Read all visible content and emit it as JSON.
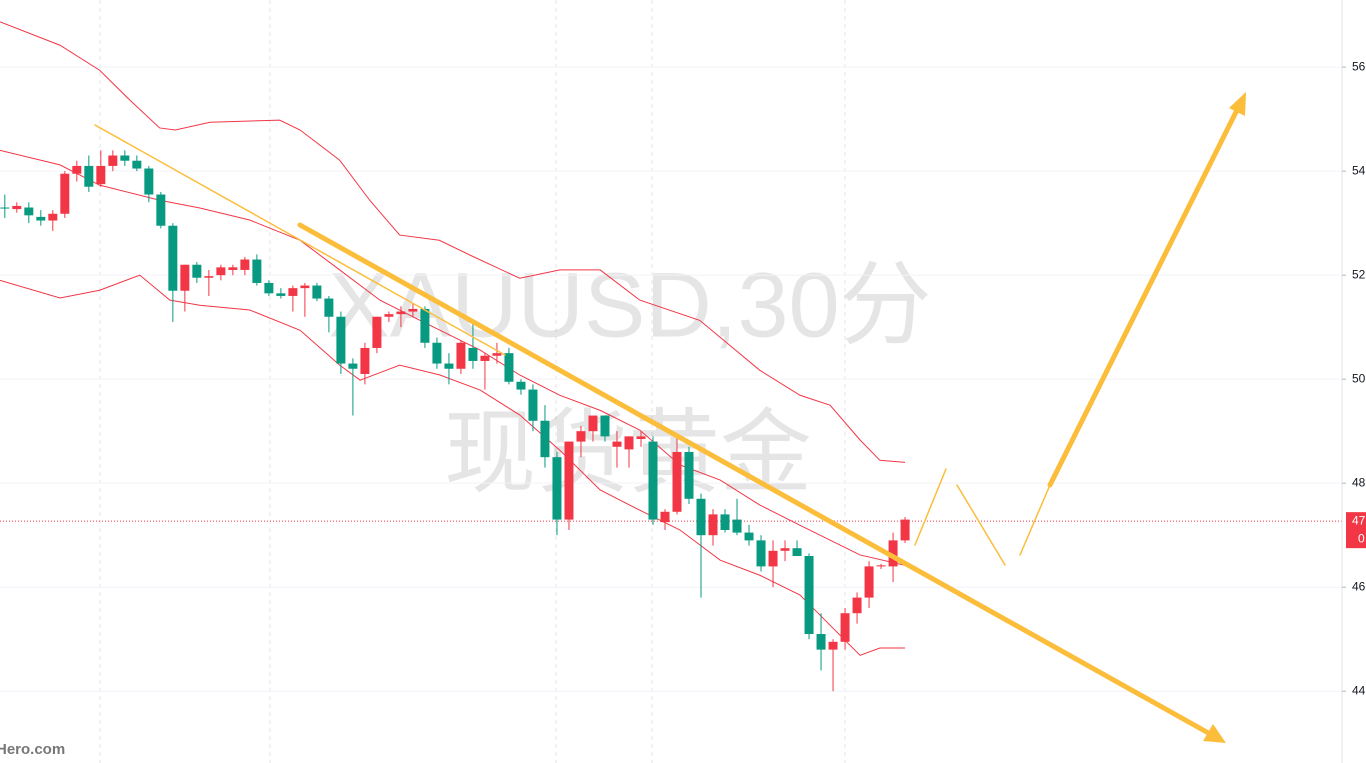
{
  "chart_data": {
    "type": "candlestick",
    "watermark_title": "XAUUSD,30分",
    "watermark_subtitle": "现货黄金",
    "logo": "Hero.com",
    "up_color": "#f23645",
    "down_color": "#089981",
    "open": [
      53.3,
      53.27,
      53.3,
      53.12,
      53.05,
      53.18,
      53.95,
      54.1,
      53.75,
      54.1,
      54.3,
      54.2,
      54.05,
      53.55,
      52.95,
      51.7,
      52.2,
      51.95,
      52.0,
      52.1,
      52.1,
      52.3,
      51.85,
      51.65,
      51.6,
      51.75,
      51.8,
      51.55,
      51.2,
      50.3,
      50.1,
      50.6,
      51.2,
      51.25,
      51.3,
      51.35,
      50.7,
      50.3,
      50.2,
      50.6,
      50.35,
      50.45,
      50.5,
      49.95,
      49.8,
      49.2,
      48.5,
      47.3,
      48.8,
      49.0,
      49.3,
      48.7,
      48.65,
      48.85,
      48.8,
      47.25,
      47.45,
      48.6,
      47.7,
      47.0,
      47.4,
      47.3,
      47.05,
      46.9,
      46.4,
      46.7,
      46.75,
      46.6,
      45.1,
      44.8,
      44.95,
      45.5,
      45.8,
      46.4,
      46.4,
      46.9
    ],
    "high": [
      53.55,
      53.4,
      53.4,
      53.25,
      53.25,
      54.0,
      54.2,
      54.3,
      54.4,
      54.4,
      54.4,
      54.3,
      54.1,
      53.6,
      53.0,
      52.2,
      52.25,
      52.1,
      52.2,
      52.2,
      52.35,
      52.4,
      51.9,
      51.75,
      51.8,
      51.85,
      51.85,
      51.6,
      51.3,
      50.4,
      50.7,
      51.2,
      51.3,
      51.4,
      51.45,
      51.4,
      50.8,
      50.5,
      50.75,
      51.1,
      50.5,
      50.7,
      50.6,
      50.0,
      49.9,
      49.5,
      48.6,
      48.8,
      49.1,
      49.3,
      49.3,
      49.0,
      48.9,
      49.0,
      48.9,
      47.5,
      48.9,
      48.7,
      47.8,
      47.5,
      47.5,
      47.7,
      47.2,
      47.0,
      46.9,
      46.9,
      46.9,
      46.65,
      45.5,
      45.0,
      45.6,
      45.9,
      46.5,
      46.45,
      47.05,
      47.35
    ],
    "low": [
      53.1,
      53.2,
      53.0,
      52.95,
      52.85,
      53.1,
      53.8,
      53.6,
      53.7,
      54.0,
      54.1,
      54.0,
      53.4,
      52.9,
      51.1,
      51.3,
      51.85,
      51.6,
      51.9,
      52.0,
      52.0,
      51.8,
      51.6,
      51.55,
      51.3,
      51.2,
      51.5,
      50.9,
      50.1,
      49.3,
      49.9,
      50.5,
      51.1,
      51.0,
      51.2,
      50.6,
      50.2,
      49.9,
      50.1,
      50.2,
      49.8,
      50.3,
      49.9,
      49.7,
      49.0,
      48.3,
      47.0,
      47.1,
      48.5,
      48.8,
      48.8,
      48.3,
      48.3,
      48.7,
      47.2,
      47.1,
      47.4,
      47.6,
      45.8,
      46.8,
      47.05,
      47.0,
      46.8,
      46.3,
      46.0,
      46.5,
      46.6,
      45.0,
      44.4,
      44.0,
      44.8,
      45.3,
      45.6,
      46.35,
      46.1,
      46.85
    ],
    "close": [
      53.28,
      53.33,
      53.15,
      53.05,
      53.18,
      53.95,
      54.1,
      53.7,
      54.1,
      54.3,
      54.2,
      54.05,
      53.55,
      52.95,
      51.7,
      52.2,
      51.95,
      51.98,
      52.15,
      52.15,
      52.3,
      51.85,
      51.65,
      51.6,
      51.75,
      51.8,
      51.55,
      51.2,
      50.3,
      50.2,
      50.6,
      51.2,
      51.25,
      51.3,
      51.35,
      50.7,
      50.3,
      50.2,
      50.7,
      50.35,
      50.45,
      50.5,
      49.95,
      49.8,
      49.2,
      48.5,
      47.3,
      48.8,
      49.0,
      49.3,
      48.9,
      48.8,
      48.9,
      48.9,
      47.3,
      47.45,
      48.6,
      47.7,
      47.0,
      47.4,
      47.1,
      47.05,
      46.9,
      46.4,
      46.7,
      46.75,
      46.6,
      45.1,
      44.8,
      44.95,
      45.5,
      45.8,
      46.4,
      46.42,
      46.9,
      47.3
    ],
    "bands": [
      {
        "color": "#f23645",
        "x": [
          -0.4,
          4.6,
          7.9,
          10.4,
          12.9,
          14.2,
          17.1,
          22.9,
          24.6,
          27.9,
          30.4,
          32.9,
          36.2,
          38.8,
          42.9,
          46.25,
          49.6,
          52.9,
          57.9,
          62.9,
          66.25,
          68.75,
          71.25,
          72.9,
          75.0
        ],
        "values": [
          56.87,
          56.42,
          55.94,
          55.37,
          54.83,
          54.79,
          54.94,
          54.98,
          54.79,
          54.21,
          53.44,
          52.77,
          52.67,
          52.38,
          51.94,
          52.1,
          52.1,
          51.52,
          51.13,
          50.17,
          49.69,
          49.5,
          48.83,
          48.44,
          48.4
        ]
      },
      {
        "color": "#f23645",
        "x": [
          -0.4,
          4.6,
          7.9,
          12.9,
          16.25,
          20.4,
          24.6,
          27.9,
          31.25,
          34.6,
          39.6,
          42.9,
          46.25,
          49.6,
          52.9,
          56.25,
          59.6,
          62.9,
          66.25,
          71.25,
          75.0
        ],
        "values": [
          54.4,
          54.12,
          53.73,
          53.44,
          53.29,
          53.06,
          52.67,
          52.1,
          51.52,
          51.13,
          50.56,
          50.08,
          49.69,
          49.4,
          49.02,
          48.35,
          48.06,
          47.58,
          47.19,
          46.62,
          46.42
        ]
      },
      {
        "color": "#f23645",
        "x": [
          -0.4,
          4.6,
          7.9,
          11.25,
          13.75,
          16.25,
          20.4,
          24.6,
          27.9,
          29.6,
          32.9,
          36.25,
          39.6,
          42.9,
          46.25,
          49.6,
          52.9,
          56.25,
          59.6,
          62.9,
          66.25,
          68.75,
          71.25,
          72.9,
          75.0
        ],
        "values": [
          51.9,
          51.56,
          51.71,
          52.0,
          51.52,
          51.42,
          51.33,
          50.94,
          50.27,
          49.98,
          50.27,
          50.08,
          49.79,
          49.31,
          48.63,
          47.87,
          47.48,
          47.1,
          46.52,
          46.23,
          45.85,
          45.27,
          44.69,
          44.83,
          44.83
        ]
      }
    ],
    "price_tag": {
      "value": 47.27,
      "label": "47",
      "sublabel": "0"
    },
    "xlim": [
      -0.4,
      111.4
    ],
    "ylim": [
      42.62,
      57.29
    ],
    "yticks": [
      44,
      46,
      48,
      50,
      52,
      54,
      56
    ],
    "grid": true
  }
}
